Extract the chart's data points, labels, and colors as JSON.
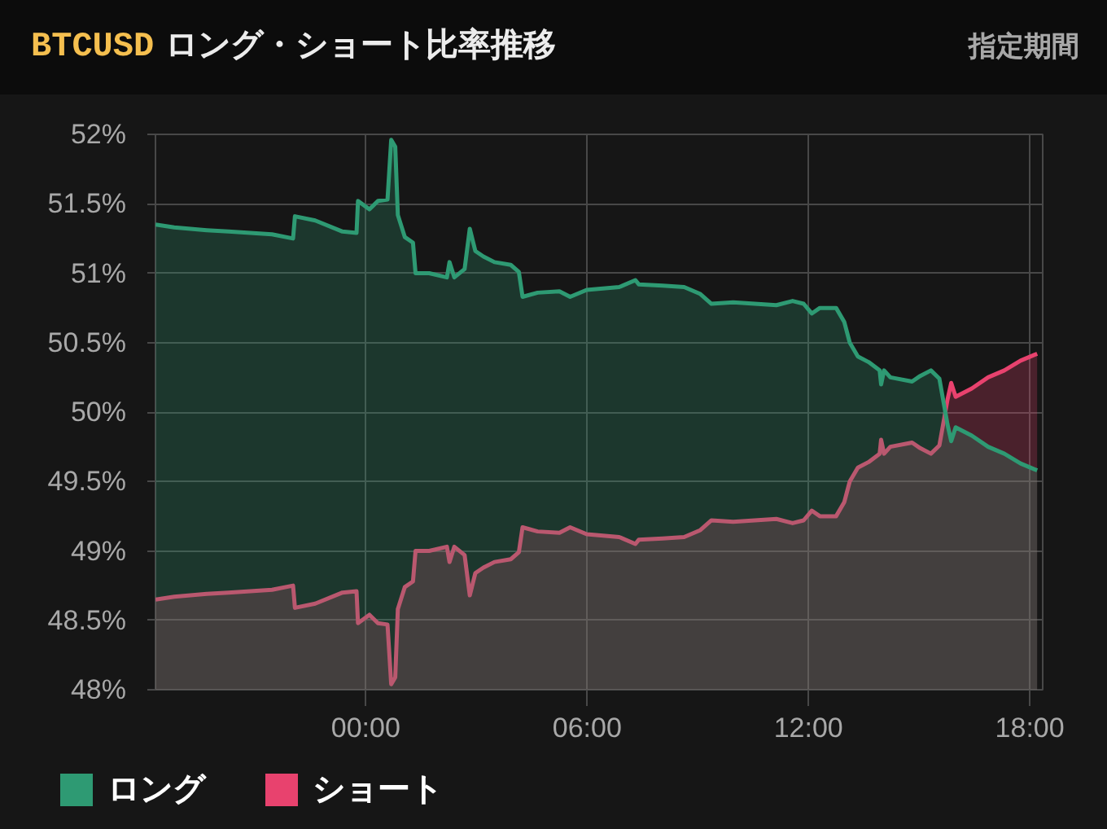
{
  "chart_data": {
    "type": "area",
    "title": "BTCUSD ロング・ショート比率推移",
    "annotations": [
      "指定期間"
    ],
    "x": [
      -5.7,
      -5.19,
      -4.31,
      -3.72,
      -2.54,
      -1.97,
      -1.92,
      -1.37,
      -0.63,
      -0.25,
      -0.21,
      0.1,
      0.33,
      0.59,
      0.69,
      0.8,
      0.87,
      1.06,
      1.28,
      1.35,
      1.72,
      2.2,
      2.27,
      2.4,
      2.68,
      2.82,
      2.97,
      3.19,
      3.49,
      3.93,
      4.15,
      4.25,
      4.66,
      5.25,
      5.54,
      5.99,
      6.87,
      7.31,
      7.4,
      8.05,
      8.63,
      9.07,
      9.37,
      9.96,
      11.13,
      11.57,
      11.87,
      12.09,
      12.31,
      12.75,
      12.97,
      13.12,
      13.34,
      13.63,
      13.93,
      13.97,
      14.05,
      14.22,
      14.81,
      15.03,
      15.32,
      15.55,
      15.69,
      15.77,
      15.87,
      15.99,
      16.43,
      16.87,
      17.31,
      17.75,
      18.2
    ],
    "series": [
      {
        "name": "ロング",
        "color": "#2e9a73",
        "values": [
          51.35,
          51.33,
          51.31,
          51.3,
          51.28,
          51.25,
          51.41,
          51.38,
          51.3,
          51.29,
          51.52,
          51.46,
          51.52,
          51.53,
          51.96,
          51.91,
          51.42,
          51.26,
          51.22,
          51.0,
          51.0,
          50.97,
          51.08,
          50.97,
          51.03,
          51.32,
          51.16,
          51.12,
          51.08,
          51.06,
          51.01,
          50.83,
          50.86,
          50.87,
          50.83,
          50.88,
          50.9,
          50.95,
          50.92,
          50.91,
          50.9,
          50.85,
          50.78,
          50.79,
          50.77,
          50.8,
          50.78,
          50.71,
          50.75,
          50.75,
          50.65,
          50.5,
          50.4,
          50.36,
          50.3,
          50.2,
          50.3,
          50.25,
          50.22,
          50.26,
          50.3,
          50.24,
          50.03,
          49.91,
          49.79,
          49.89,
          49.83,
          49.75,
          49.7,
          49.63,
          49.58
        ]
      },
      {
        "name": "ショート",
        "color": "#e8426e",
        "values": [
          48.65,
          48.67,
          48.69,
          48.7,
          48.72,
          48.75,
          48.59,
          48.62,
          48.7,
          48.71,
          48.48,
          48.54,
          48.48,
          48.47,
          48.04,
          48.09,
          48.58,
          48.74,
          48.78,
          49.0,
          49.0,
          49.03,
          48.92,
          49.03,
          48.97,
          48.68,
          48.84,
          48.88,
          48.92,
          48.94,
          48.99,
          49.17,
          49.14,
          49.13,
          49.17,
          49.12,
          49.1,
          49.05,
          49.08,
          49.09,
          49.1,
          49.15,
          49.22,
          49.21,
          49.23,
          49.2,
          49.22,
          49.29,
          49.25,
          49.25,
          49.35,
          49.5,
          49.6,
          49.64,
          49.7,
          49.8,
          49.7,
          49.75,
          49.78,
          49.74,
          49.7,
          49.76,
          49.97,
          50.09,
          50.21,
          50.11,
          50.17,
          50.25,
          50.3,
          50.37,
          50.42
        ]
      }
    ],
    "xlim": [
      -5.7,
      18.35
    ],
    "xticks": [
      {
        "value": 0,
        "label": "00:00"
      },
      {
        "value": 6,
        "label": "06:00"
      },
      {
        "value": 12,
        "label": "12:00"
      },
      {
        "value": 18,
        "label": "18:00"
      }
    ],
    "ylim": [
      48,
      52
    ],
    "yticks": [
      {
        "value": 48,
        "label": "48%"
      },
      {
        "value": 48.5,
        "label": "48.5%"
      },
      {
        "value": 49,
        "label": "49%"
      },
      {
        "value": 49.5,
        "label": "49.5%"
      },
      {
        "value": 50,
        "label": "50%"
      },
      {
        "value": 50.5,
        "label": "50.5%"
      },
      {
        "value": 51,
        "label": "51%"
      },
      {
        "value": 51.5,
        "label": "51.5%"
      },
      {
        "value": 52,
        "label": "52%"
      }
    ],
    "grid": true,
    "legend": "bottom left"
  }
}
